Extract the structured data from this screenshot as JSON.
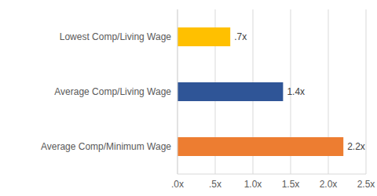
{
  "chart_data": {
    "type": "bar",
    "orientation": "horizontal",
    "categories": [
      "Lowest Comp/Living Wage",
      "Average Comp/Living Wage",
      "Average Comp/Minimum Wage"
    ],
    "values": [
      0.7,
      1.4,
      2.2
    ],
    "value_labels": [
      ".7x",
      "1.4x",
      "2.2x"
    ],
    "colors": [
      "#ffc000",
      "#2f5597",
      "#ed7d31"
    ],
    "xlim": [
      0,
      2.5
    ],
    "xticks": [
      {
        "value": 0,
        "label": ".0x"
      },
      {
        "value": 0.5,
        "label": ".5x"
      },
      {
        "value": 1,
        "label": "1.0x"
      },
      {
        "value": 1.5,
        "label": "1.5x"
      },
      {
        "value": 2,
        "label": "2.0x"
      },
      {
        "value": 2.5,
        "label": "2.5x"
      }
    ],
    "grid": true,
    "data_labels": true
  }
}
